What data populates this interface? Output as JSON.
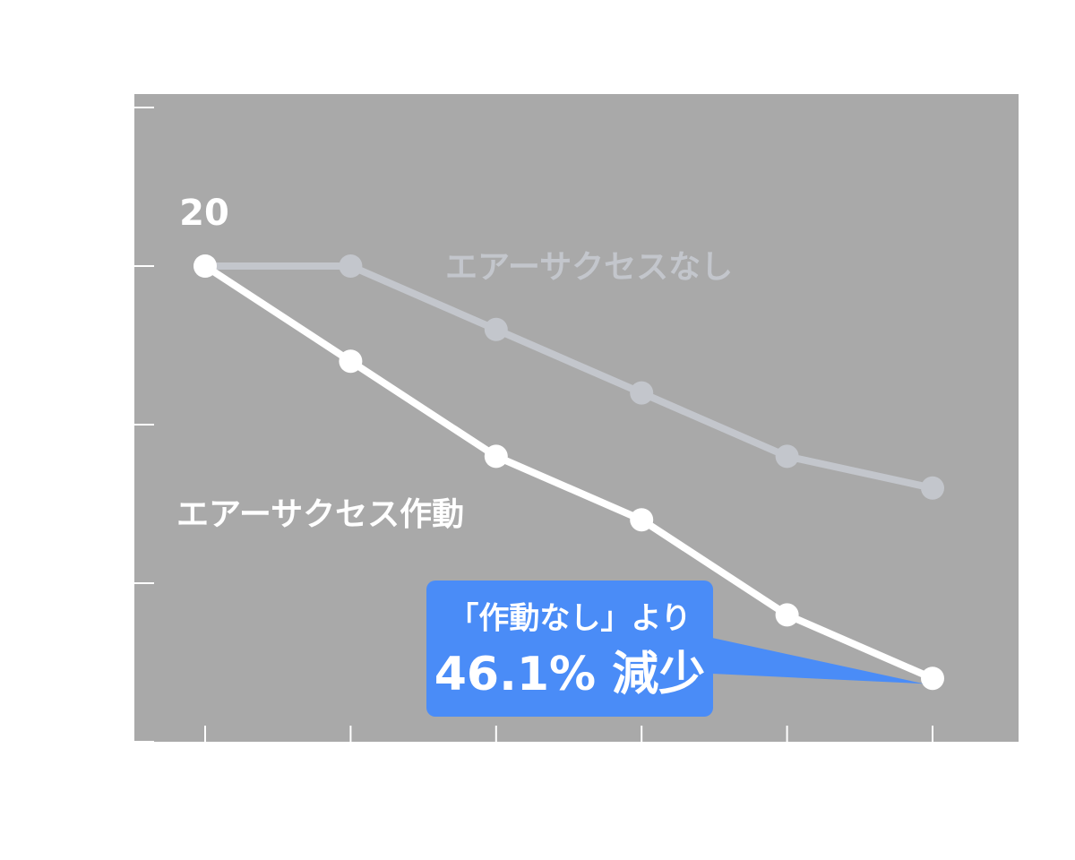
{
  "chart_data": {
    "type": "line",
    "categories": [
      null,
      null,
      null,
      null,
      null,
      null
    ],
    "series": [
      {
        "name": "エアーサクセス作動",
        "color": "#ffffff",
        "values": [
          20,
          17,
          14,
          12,
          9,
          7
        ]
      },
      {
        "name": "エアーサクセスなし",
        "color": "#c3c6cc",
        "values": [
          20,
          20,
          18,
          16,
          14,
          13
        ]
      }
    ],
    "ylim": [
      5,
      25
    ],
    "yticks": [
      5,
      10,
      15,
      20,
      25
    ],
    "annotations": [
      "「作動なし」より",
      "46.1% 減少"
    ],
    "annotation_color": "#4a8cf7"
  }
}
